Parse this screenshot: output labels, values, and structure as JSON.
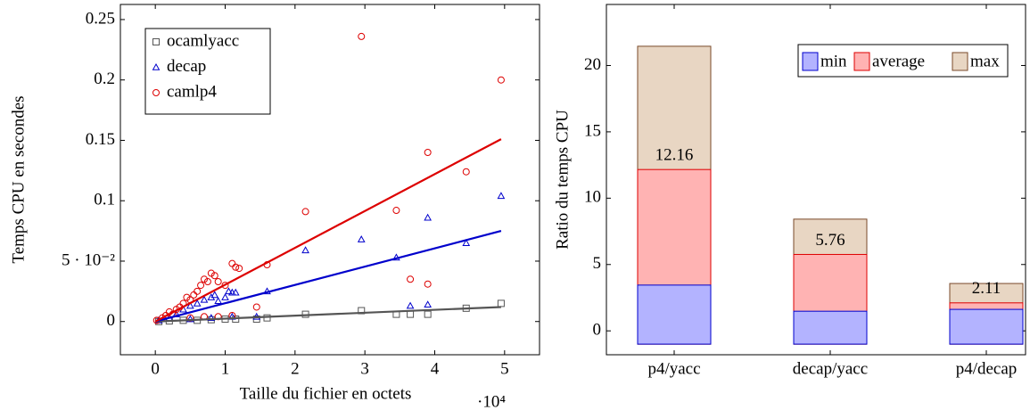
{
  "chart_data": [
    {
      "type": "scatter",
      "xlabel": "Taille du fichier en octets",
      "ylabel": "Temps CPU en secondes",
      "x_multiplier": "·10⁴",
      "xlim": [
        -0.5,
        5.5
      ],
      "ylim": [
        -0.0275,
        0.2625
      ],
      "xticks": [
        0,
        1,
        2,
        3,
        4,
        5
      ],
      "yticks": [
        0,
        {
          "value": 0.05,
          "label": "5 · 10⁻²"
        },
        0.1,
        0.15,
        0.2,
        0.25
      ],
      "legend": "upper left",
      "series": [
        {
          "name": "ocamlyacc",
          "color": "#555555",
          "marker": "square",
          "x": [
            0.05,
            0.2,
            0.4,
            0.6,
            0.8,
            1.0,
            1.15,
            1.45,
            1.6,
            2.15,
            2.95,
            3.45,
            3.65,
            3.9,
            4.45,
            4.95
          ],
          "values": [
            0,
            0.0005,
            0.001,
            0.001,
            0.0015,
            0.002,
            0.002,
            0.002,
            0.003,
            0.006,
            0.009,
            0.006,
            0.006,
            0.006,
            0.011,
            0.015
          ],
          "fit": {
            "x": [
              0,
              4.95
            ],
            "values": [
              0,
              0.012
            ]
          }
        },
        {
          "name": "decap",
          "color": "#0000cc",
          "marker": "triangle",
          "x": [
            0.05,
            0.2,
            0.3,
            0.4,
            0.5,
            0.5,
            0.6,
            0.7,
            0.8,
            0.8,
            0.85,
            0.9,
            1.0,
            1.05,
            1.1,
            1.1,
            1.15,
            1.45,
            1.6,
            2.15,
            2.95,
            3.45,
            3.65,
            3.9,
            3.9,
            4.45,
            4.95
          ],
          "values": [
            0.001,
            0.003,
            0.006,
            0.01,
            0.013,
            0.002,
            0.015,
            0.018,
            0.02,
            0.003,
            0.022,
            0.017,
            0.02,
            0.025,
            0.024,
            0.004,
            0.024,
            0.004,
            0.025,
            0.059,
            0.068,
            0.053,
            0.013,
            0.086,
            0.014,
            0.065,
            0.104
          ],
          "fit": {
            "x": [
              0,
              4.95
            ],
            "values": [
              0,
              0.075
            ]
          }
        },
        {
          "name": "camlp4",
          "color": "#dd0000",
          "marker": "circle",
          "x": [
            0.02,
            0.1,
            0.15,
            0.2,
            0.25,
            0.3,
            0.35,
            0.4,
            0.45,
            0.5,
            0.5,
            0.55,
            0.6,
            0.65,
            0.7,
            0.7,
            0.75,
            0.8,
            0.85,
            0.9,
            0.9,
            1.0,
            1.1,
            1.1,
            1.15,
            1.2,
            1.45,
            1.6,
            2.15,
            2.95,
            3.45,
            3.65,
            3.9,
            3.9,
            4.45,
            4.95
          ],
          "values": [
            0.001,
            0.003,
            0.005,
            0.008,
            0.006,
            0.01,
            0.012,
            0.015,
            0.02,
            0.018,
            0.003,
            0.022,
            0.025,
            0.03,
            0.035,
            0.004,
            0.033,
            0.04,
            0.038,
            0.033,
            0.004,
            0.03,
            0.048,
            0.005,
            0.045,
            0.044,
            0.012,
            0.047,
            0.091,
            0.236,
            0.092,
            0.035,
            0.14,
            0.031,
            0.124,
            0.2
          ],
          "fit": {
            "x": [
              0,
              4.95
            ],
            "values": [
              0,
              0.151
            ]
          }
        }
      ]
    },
    {
      "type": "bar",
      "ylabel": "Ratio du temps CPU",
      "ylim": [
        -1.8,
        24.6
      ],
      "yticks": [
        0,
        5,
        10,
        15,
        20
      ],
      "bar_base": -1,
      "legend": "upper right",
      "categories": [
        "p4/yacc",
        "decap/yacc",
        "p4/decap"
      ],
      "series": [
        {
          "name": "min",
          "color": "#b3b3ff",
          "edge": "#0000cc",
          "values": [
            3.45,
            1.48,
            1.62
          ]
        },
        {
          "name": "average",
          "color": "#ffb3b3",
          "edge": "#dd0000",
          "values": [
            12.16,
            5.76,
            2.11
          ],
          "labels_shown": true
        },
        {
          "name": "max",
          "color": "#e8d6c3",
          "edge": "#7a4a2a",
          "values": [
            21.45,
            8.42,
            3.57
          ]
        }
      ]
    }
  ]
}
